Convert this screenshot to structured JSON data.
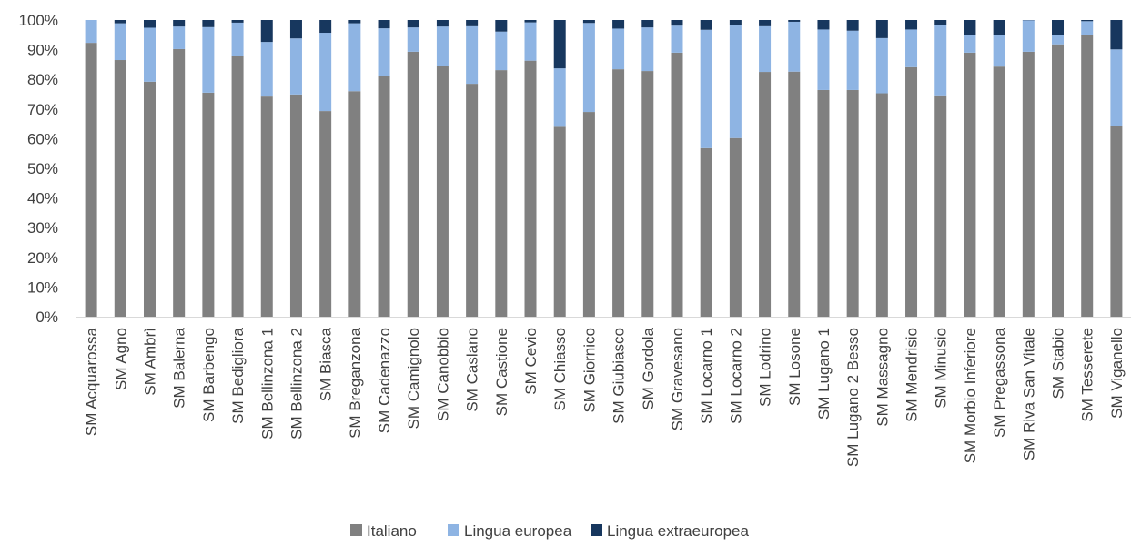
{
  "chart_data": {
    "type": "bar",
    "stacked": true,
    "percent": true,
    "title": "",
    "xlabel": "",
    "ylabel": "",
    "ylim": [
      0,
      100
    ],
    "y_ticks": [
      "0%",
      "10%",
      "20%",
      "30%",
      "40%",
      "50%",
      "60%",
      "70%",
      "80%",
      "90%",
      "100%"
    ],
    "grid": false,
    "legend_position": "bottom",
    "categories": [
      "SM Acquarossa",
      "SM Agno",
      "SM Ambrì",
      "SM Balerna",
      "SM Barbengo",
      "SM Bedigliora",
      "SM Bellinzona 1",
      "SM Bellinzona 2",
      "SM Biasca",
      "SM Breganzona",
      "SM Cadenazzo",
      "SM Camignolo",
      "SM Canobbio",
      "SM Caslano",
      "SM Castione",
      "SM Cevio",
      "SM Chiasso",
      "SM Giornico",
      "SM Giubiasco",
      "SM Gordola",
      "SM Gravesano",
      "SM Locarno 1",
      "SM Locarno 2",
      "SM Lodrino",
      "SM Losone",
      "SM Lugano 1",
      "SM Lugano 2 Besso",
      "SM Massagno",
      "SM Mendrisio",
      "SM Minusio",
      "SM Morbio Inferiore",
      "SM Pregassona",
      "SM Riva San Vitale",
      "SM Stabio",
      "SM Tesserete",
      "SM Viganello"
    ],
    "series": [
      {
        "name": "Italiano",
        "color": "#808080",
        "values": [
          92.3,
          86.5,
          79.2,
          90.2,
          75.5,
          87.8,
          74.2,
          74.9,
          69.3,
          76.0,
          81.0,
          89.3,
          84.4,
          78.5,
          83.1,
          86.3,
          64.0,
          69.0,
          83.4,
          82.8,
          89.0,
          56.8,
          60.2,
          82.5,
          82.6,
          76.4,
          76.4,
          75.3,
          84.1,
          74.6,
          89.0,
          84.3,
          89.3,
          91.8,
          94.8,
          64.3
        ]
      },
      {
        "name": "Lingua europea",
        "color": "#8EB4E3",
        "values": [
          7.7,
          12.4,
          18.2,
          7.6,
          22.1,
          11.3,
          18.4,
          18.9,
          26.4,
          22.9,
          16.2,
          8.2,
          13.4,
          19.4,
          13.0,
          12.9,
          19.7,
          30.0,
          13.7,
          14.7,
          9.1,
          39.9,
          38.1,
          15.4,
          16.8,
          20.4,
          20.0,
          18.6,
          12.7,
          23.7,
          5.9,
          10.6,
          10.6,
          3.1,
          4.8,
          25.8
        ]
      },
      {
        "name": "Lingua extraeuropea",
        "color": "#17375E",
        "values": [
          0.0,
          1.1,
          2.6,
          2.2,
          2.4,
          0.9,
          7.4,
          6.2,
          4.3,
          1.1,
          2.8,
          2.5,
          2.2,
          2.1,
          3.9,
          0.8,
          16.3,
          1.0,
          2.9,
          2.5,
          1.9,
          3.3,
          1.7,
          2.1,
          0.6,
          3.2,
          3.6,
          6.1,
          3.2,
          1.7,
          5.1,
          5.1,
          0.1,
          5.1,
          0.4,
          9.9
        ]
      }
    ]
  }
}
